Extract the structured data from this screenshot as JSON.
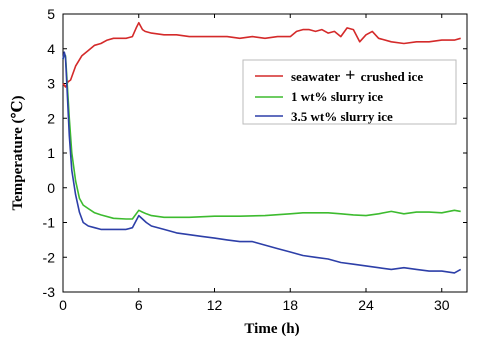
{
  "chart_data": {
    "type": "line",
    "title": "",
    "xlabel": "Time (h)",
    "ylabel": "Temperature (℃)",
    "xlim": [
      0,
      32
    ],
    "ylim": [
      -3,
      5
    ],
    "xticks": [
      0,
      6,
      12,
      18,
      24,
      30
    ],
    "xtick_labels": [
      "0",
      "6",
      "12",
      "18",
      "24",
      "30"
    ],
    "yticks": [
      -3,
      -2,
      -1,
      0,
      1,
      2,
      3,
      4,
      5
    ],
    "ytick_labels": [
      "-3",
      "-2",
      "-1",
      "0",
      "1",
      "2",
      "3",
      "4",
      "5"
    ],
    "grid": false,
    "legend_position": "right",
    "series": [
      {
        "name": "seawater + crushed ice",
        "color": "#d42a2a",
        "x": [
          0,
          0.2,
          0.4,
          0.6,
          1,
          1.5,
          2,
          2.5,
          3,
          3.5,
          4,
          4.5,
          5,
          5.5,
          5.8,
          6,
          6.3,
          6.5,
          7,
          8,
          9,
          10,
          11,
          12,
          13,
          14,
          15,
          16,
          17,
          18,
          18.5,
          19,
          19.5,
          20,
          20.5,
          21,
          21.5,
          22,
          22.5,
          23,
          23.5,
          24,
          24.5,
          25,
          26,
          27,
          28,
          29,
          30,
          31,
          31.5
        ],
        "y": [
          3.0,
          2.9,
          3.05,
          3.1,
          3.5,
          3.8,
          3.95,
          4.1,
          4.15,
          4.25,
          4.3,
          4.3,
          4.3,
          4.35,
          4.6,
          4.75,
          4.55,
          4.5,
          4.45,
          4.4,
          4.4,
          4.35,
          4.35,
          4.35,
          4.35,
          4.3,
          4.35,
          4.3,
          4.35,
          4.35,
          4.5,
          4.55,
          4.55,
          4.5,
          4.55,
          4.45,
          4.5,
          4.35,
          4.6,
          4.55,
          4.2,
          4.4,
          4.5,
          4.3,
          4.2,
          4.15,
          4.2,
          4.2,
          4.25,
          4.25,
          4.3
        ]
      },
      {
        "name": "1 wt% slurry ice",
        "color": "#3dbb2f",
        "x": [
          0,
          0.1,
          0.2,
          0.3,
          0.5,
          0.7,
          1,
          1.3,
          1.6,
          2,
          2.5,
          3,
          4,
          5,
          5.5,
          6,
          6.3,
          6.6,
          7,
          8,
          9,
          10,
          12,
          14,
          16,
          18,
          19,
          20,
          21,
          22,
          23,
          24,
          25,
          26,
          27,
          28,
          29,
          30,
          31,
          31.5
        ],
        "y": [
          3.7,
          3.85,
          3.8,
          3.2,
          2.0,
          1.0,
          0.2,
          -0.3,
          -0.5,
          -0.6,
          -0.72,
          -0.78,
          -0.88,
          -0.9,
          -0.9,
          -0.65,
          -0.7,
          -0.75,
          -0.8,
          -0.85,
          -0.85,
          -0.85,
          -0.82,
          -0.82,
          -0.8,
          -0.75,
          -0.72,
          -0.72,
          -0.72,
          -0.75,
          -0.78,
          -0.8,
          -0.75,
          -0.68,
          -0.75,
          -0.7,
          -0.7,
          -0.72,
          -0.65,
          -0.68
        ]
      },
      {
        "name": "3.5 wt% slurry ice",
        "color": "#2d3fa8",
        "x": [
          0,
          0.1,
          0.2,
          0.3,
          0.5,
          0.7,
          1,
          1.3,
          1.6,
          2,
          2.5,
          3,
          4,
          5,
          5.5,
          6,
          6.3,
          6.6,
          7,
          8,
          9,
          10,
          11,
          12,
          13,
          14,
          15,
          16,
          17,
          18,
          19,
          20,
          21,
          22,
          23,
          24,
          25,
          26,
          27,
          28,
          29,
          30,
          31,
          31.5
        ],
        "y": [
          3.7,
          3.9,
          3.75,
          3.0,
          1.5,
          0.5,
          -0.2,
          -0.7,
          -1.0,
          -1.1,
          -1.15,
          -1.2,
          -1.2,
          -1.2,
          -1.15,
          -0.8,
          -0.9,
          -1.0,
          -1.1,
          -1.2,
          -1.3,
          -1.35,
          -1.4,
          -1.45,
          -1.5,
          -1.55,
          -1.55,
          -1.65,
          -1.75,
          -1.85,
          -1.95,
          -2.0,
          -2.05,
          -2.15,
          -2.2,
          -2.25,
          -2.3,
          -2.35,
          -2.3,
          -2.35,
          -2.4,
          -2.4,
          -2.45,
          -2.35
        ]
      }
    ],
    "legend": [
      {
        "label": "seawater",
        "plus": "+",
        "label_tail": "crushed ice",
        "color": "#d42a2a"
      },
      {
        "label": "1 wt% slurry ice",
        "plus": "",
        "label_tail": "",
        "color": "#3dbb2f"
      },
      {
        "label": "3.5 wt% slurry ice",
        "plus": "",
        "label_tail": "",
        "color": "#2d3fa8"
      }
    ]
  }
}
